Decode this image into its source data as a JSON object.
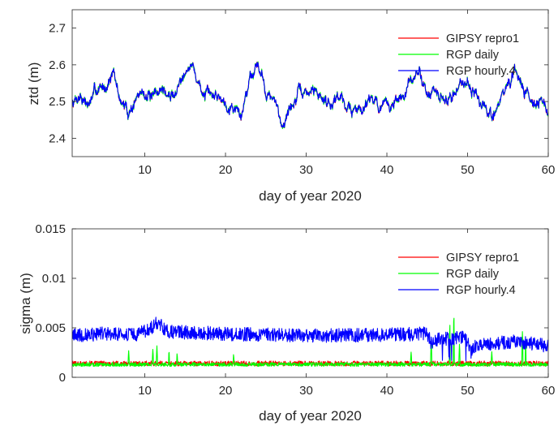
{
  "chart_data": [
    {
      "type": "line",
      "title": "",
      "xlabel": "day of year 2020",
      "ylabel": "ztd (m)",
      "xlim": [
        1,
        60
      ],
      "ylim": [
        2.35,
        2.75
      ],
      "xticks": [
        10,
        20,
        30,
        40,
        50,
        60
      ],
      "yticks": [
        2.4,
        2.5,
        2.6,
        2.7
      ],
      "ytick_labels": [
        "2.4",
        "2.5",
        "2.6",
        "2.7"
      ],
      "grid": false,
      "legend": "top-right",
      "series": [
        {
          "name": "GIPSY repro1",
          "color": "#ff0000"
        },
        {
          "name": "RGP daily",
          "color": "#00ff00"
        },
        {
          "name": "RGP hourly.4",
          "color": "#0000ff"
        }
      ],
      "x": [
        1,
        2,
        3,
        4,
        5,
        6,
        7,
        8,
        9,
        10,
        11,
        12,
        13,
        14,
        15,
        16,
        17,
        18,
        19,
        20,
        21,
        22,
        23,
        24,
        25,
        26,
        27,
        28,
        29,
        30,
        31,
        32,
        33,
        34,
        35,
        36,
        37,
        38,
        39,
        40,
        41,
        42,
        43,
        44,
        45,
        46,
        47,
        48,
        49,
        50,
        51,
        52,
        53,
        54,
        55,
        56,
        57,
        58,
        59,
        60
      ],
      "trend": [
        2.5,
        2.52,
        2.49,
        2.53,
        2.54,
        2.58,
        2.5,
        2.47,
        2.51,
        2.53,
        2.5,
        2.54,
        2.51,
        2.53,
        2.6,
        2.59,
        2.53,
        2.51,
        2.52,
        2.5,
        2.49,
        2.46,
        2.57,
        2.61,
        2.53,
        2.5,
        2.44,
        2.48,
        2.52,
        2.52,
        2.53,
        2.51,
        2.5,
        2.52,
        2.49,
        2.47,
        2.49,
        2.52,
        2.49,
        2.48,
        2.5,
        2.51,
        2.55,
        2.58,
        2.53,
        2.52,
        2.5,
        2.51,
        2.55,
        2.56,
        2.52,
        2.48,
        2.46,
        2.5,
        2.55,
        2.57,
        2.54,
        2.51,
        2.5,
        2.47
      ]
    },
    {
      "type": "line",
      "title": "",
      "xlabel": "day of year 2020",
      "ylabel": "sigma (m)",
      "xlim": [
        1,
        60
      ],
      "ylim": [
        0,
        0.015
      ],
      "xticks": [
        10,
        20,
        30,
        40,
        50,
        60
      ],
      "yticks": [
        0,
        0.005,
        0.01,
        0.015
      ],
      "ytick_labels": [
        "0",
        "0.005",
        "0.01",
        "0.015"
      ],
      "grid": false,
      "legend": "top-right",
      "series": [
        {
          "name": "GIPSY repro1",
          "color": "#ff0000",
          "level": 0.0014,
          "noise": 0.00025
        },
        {
          "name": "RGP daily",
          "color": "#00ff00",
          "level": 0.0013,
          "noise": 0.0002,
          "spikes": [
            [
              8,
              0.0027
            ],
            [
              11,
              0.0029
            ],
            [
              11.5,
              0.0032
            ],
            [
              13,
              0.0028
            ],
            [
              14,
              0.0025
            ],
            [
              21,
              0.0024
            ],
            [
              43,
              0.0026
            ],
            [
              45.5,
              0.004
            ],
            [
              47.8,
              0.0058
            ],
            [
              48.3,
              0.007
            ],
            [
              49,
              0.0035
            ],
            [
              53,
              0.0026
            ],
            [
              56.8,
              0.0048
            ],
            [
              57.2,
              0.0037
            ]
          ]
        },
        {
          "name": "RGP hourly.4",
          "color": "#0000ff",
          "noise": 0.0007
        }
      ],
      "hourly_x": [
        1,
        5,
        9,
        10.5,
        11.5,
        13,
        20,
        30,
        40,
        45,
        45.6,
        46.5,
        48,
        49.5,
        50.5,
        51,
        53,
        56,
        60
      ],
      "hourly_y": [
        0.0042,
        0.0044,
        0.0043,
        0.0048,
        0.0055,
        0.0046,
        0.0044,
        0.0042,
        0.0043,
        0.0044,
        0.0032,
        0.004,
        0.0038,
        0.0042,
        0.0028,
        0.0032,
        0.0034,
        0.0036,
        0.0032
      ]
    }
  ]
}
